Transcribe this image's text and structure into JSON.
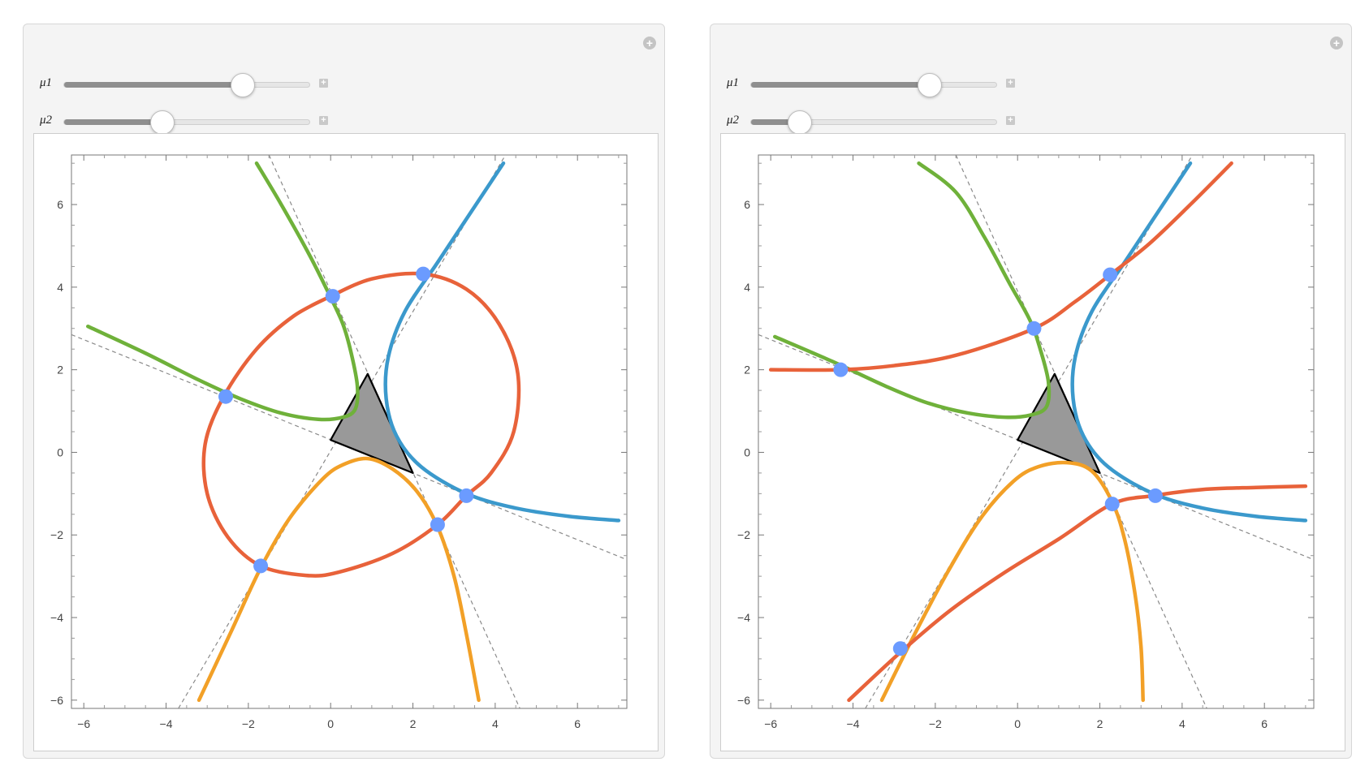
{
  "panels": [
    {
      "sliders": [
        {
          "label": "μ1",
          "value": 0.73
        },
        {
          "label": "μ2",
          "value": 0.4
        }
      ],
      "chart_data": {
        "type": "scatter",
        "xlim": [
          -6.3,
          7.2
        ],
        "ylim": [
          -6.2,
          7.2
        ],
        "xticks": [
          "−6",
          "−4",
          "−2",
          "0",
          "2",
          "4",
          "6"
        ],
        "yticks": [
          "−6",
          "−4",
          "−2",
          "0",
          "2",
          "4",
          "6"
        ],
        "x_tick_values": [
          -6,
          -4,
          -2,
          0,
          2,
          4,
          6
        ],
        "y_tick_values": [
          -6,
          -4,
          -2,
          0,
          2,
          4,
          6
        ],
        "triangle": [
          [
            0.9,
            1.9
          ],
          [
            0.0,
            0.3
          ],
          [
            2.0,
            -0.5
          ]
        ],
        "curves": [
          {
            "color": "#6fb13a",
            "points": [
              [
                -5.9,
                3.05
              ],
              [
                -4.5,
                2.4
              ],
              [
                -3.2,
                1.75
              ],
              [
                -2.2,
                1.3
              ],
              [
                -1.2,
                0.95
              ],
              [
                -0.3,
                0.8
              ],
              [
                0.3,
                0.85
              ],
              [
                0.6,
                1.05
              ],
              [
                0.65,
                1.6
              ],
              [
                0.5,
                2.4
              ],
              [
                0.3,
                3.1
              ],
              [
                0.0,
                3.75
              ],
              [
                -0.5,
                4.75
              ],
              [
                -1.2,
                6.0
              ],
              [
                -1.8,
                7.0
              ]
            ]
          },
          {
            "color": "#3b99cc",
            "points": [
              [
                4.2,
                7.0
              ],
              [
                3.4,
                5.8
              ],
              [
                2.6,
                4.6
              ],
              [
                1.8,
                3.4
              ],
              [
                1.4,
                2.3
              ],
              [
                1.35,
                1.3
              ],
              [
                1.6,
                0.4
              ],
              [
                2.2,
                -0.35
              ],
              [
                3.3,
                -1.0
              ],
              [
                4.5,
                -1.35
              ],
              [
                5.8,
                -1.55
              ],
              [
                7.0,
                -1.65
              ]
            ]
          },
          {
            "color": "#f2a027",
            "points": [
              [
                -3.2,
                -6.0
              ],
              [
                -2.4,
                -4.3
              ],
              [
                -1.7,
                -2.8
              ],
              [
                -1.0,
                -1.6
              ],
              [
                -0.2,
                -0.65
              ],
              [
                0.3,
                -0.3
              ],
              [
                0.9,
                -0.15
              ],
              [
                1.5,
                -0.4
              ],
              [
                2.1,
                -0.95
              ],
              [
                2.6,
                -1.8
              ],
              [
                3.0,
                -3.0
              ],
              [
                3.3,
                -4.4
              ],
              [
                3.6,
                -6.0
              ]
            ]
          },
          {
            "color": "#e8623a",
            "points": [
              [
                0.0,
                3.78
              ],
              [
                1.0,
                4.2
              ],
              [
                2.25,
                4.32
              ],
              [
                3.3,
                3.95
              ],
              [
                4.1,
                3.1
              ],
              [
                4.55,
                1.9
              ],
              [
                4.45,
                0.5
              ],
              [
                3.9,
                -0.5
              ],
              [
                3.3,
                -1.05
              ],
              [
                2.6,
                -1.75
              ],
              [
                1.5,
                -2.45
              ],
              [
                0.2,
                -2.9
              ],
              [
                -0.6,
                -2.98
              ],
              [
                -1.7,
                -2.75
              ],
              [
                -2.5,
                -2.05
              ],
              [
                -3.0,
                -1.0
              ],
              [
                -3.05,
                0.2
              ],
              [
                -2.6,
                1.35
              ],
              [
                -1.8,
                2.5
              ],
              [
                -0.9,
                3.3
              ],
              [
                0.0,
                3.78
              ]
            ]
          }
        ],
        "asymptotes": [
          [
            [
              -6.3,
              2.85
            ],
            [
              7.2,
              -2.6
            ]
          ],
          [
            [
              -3.7,
              -6.2
            ],
            [
              4.25,
              7.2
            ]
          ],
          [
            [
              -1.5,
              7.2
            ],
            [
              4.6,
              -6.2
            ]
          ]
        ],
        "points": [
          [
            0.05,
            3.78
          ],
          [
            2.25,
            4.32
          ],
          [
            -2.55,
            1.35
          ],
          [
            3.3,
            -1.05
          ],
          [
            2.6,
            -1.75
          ],
          [
            -1.7,
            -2.75
          ]
        ]
      }
    },
    {
      "sliders": [
        {
          "label": "μ1",
          "value": 0.73
        },
        {
          "label": "μ2",
          "value": 0.2
        }
      ],
      "chart_data": {
        "type": "scatter",
        "xlim": [
          -6.3,
          7.2
        ],
        "ylim": [
          -6.2,
          7.2
        ],
        "xticks": [
          "−6",
          "−4",
          "−2",
          "0",
          "2",
          "4",
          "6"
        ],
        "yticks": [
          "−6",
          "−4",
          "−2",
          "0",
          "2",
          "4",
          "6"
        ],
        "x_tick_values": [
          -6,
          -4,
          -2,
          0,
          2,
          4,
          6
        ],
        "y_tick_values": [
          -6,
          -4,
          -2,
          0,
          2,
          4,
          6
        ],
        "triangle": [
          [
            0.9,
            1.9
          ],
          [
            0.0,
            0.3
          ],
          [
            2.0,
            -0.5
          ]
        ],
        "curves": [
          {
            "color": "#6fb13a",
            "points": [
              [
                -5.9,
                2.8
              ],
              [
                -4.5,
                2.2
              ],
              [
                -3.2,
                1.6
              ],
              [
                -2.2,
                1.2
              ],
              [
                -1.2,
                0.95
              ],
              [
                -0.3,
                0.85
              ],
              [
                0.3,
                0.9
              ],
              [
                0.7,
                1.1
              ],
              [
                0.75,
                1.7
              ],
              [
                0.55,
                2.5
              ],
              [
                0.3,
                3.2
              ],
              [
                -0.2,
                4.1
              ],
              [
                -0.8,
                5.2
              ],
              [
                -1.5,
                6.3
              ],
              [
                -2.4,
                7.0
              ]
            ]
          },
          {
            "color": "#3b99cc",
            "points": [
              [
                4.2,
                7.0
              ],
              [
                3.4,
                5.8
              ],
              [
                2.6,
                4.6
              ],
              [
                1.8,
                3.4
              ],
              [
                1.4,
                2.3
              ],
              [
                1.35,
                1.3
              ],
              [
                1.6,
                0.4
              ],
              [
                2.2,
                -0.35
              ],
              [
                3.3,
                -1.0
              ],
              [
                4.5,
                -1.35
              ],
              [
                5.8,
                -1.55
              ],
              [
                7.0,
                -1.65
              ]
            ]
          },
          {
            "color": "#f2a027",
            "points": [
              [
                -3.3,
                -6.0
              ],
              [
                -2.5,
                -4.4
              ],
              [
                -1.7,
                -2.9
              ],
              [
                -0.9,
                -1.6
              ],
              [
                -0.1,
                -0.7
              ],
              [
                0.5,
                -0.35
              ],
              [
                1.2,
                -0.25
              ],
              [
                1.8,
                -0.45
              ],
              [
                2.3,
                -1.2
              ],
              [
                2.6,
                -2.1
              ],
              [
                2.85,
                -3.4
              ],
              [
                3.0,
                -4.7
              ],
              [
                3.05,
                -6.0
              ]
            ]
          },
          {
            "color": "#e8623a",
            "points": [
              [
                -6.0,
                2.0
              ],
              [
                -4.3,
                2.0
              ],
              [
                -3.0,
                2.1
              ],
              [
                -1.5,
                2.35
              ],
              [
                0.4,
                3.0
              ],
              [
                1.4,
                3.65
              ],
              [
                2.25,
                4.3
              ],
              [
                3.2,
                5.05
              ],
              [
                4.2,
                6.0
              ],
              [
                5.2,
                7.0
              ]
            ]
          },
          {
            "color": "#e8623a",
            "points": [
              [
                -4.1,
                -6.0
              ],
              [
                -2.8,
                -4.8
              ],
              [
                -1.6,
                -3.8
              ],
              [
                -0.3,
                -2.9
              ],
              [
                1.0,
                -2.1
              ],
              [
                2.3,
                -1.25
              ],
              [
                3.3,
                -1.05
              ],
              [
                4.5,
                -0.9
              ],
              [
                5.8,
                -0.85
              ],
              [
                7.0,
                -0.82
              ]
            ]
          }
        ],
        "asymptotes": [
          [
            [
              -6.3,
              2.85
            ],
            [
              7.2,
              -2.6
            ]
          ],
          [
            [
              -3.7,
              -6.2
            ],
            [
              4.25,
              7.2
            ]
          ],
          [
            [
              -1.5,
              7.2
            ],
            [
              4.6,
              -6.2
            ]
          ]
        ],
        "points": [
          [
            -4.3,
            2.0
          ],
          [
            0.4,
            3.0
          ],
          [
            2.25,
            4.3
          ],
          [
            2.3,
            -1.25
          ],
          [
            3.35,
            -1.05
          ],
          [
            -2.85,
            -4.75
          ]
        ]
      }
    }
  ]
}
